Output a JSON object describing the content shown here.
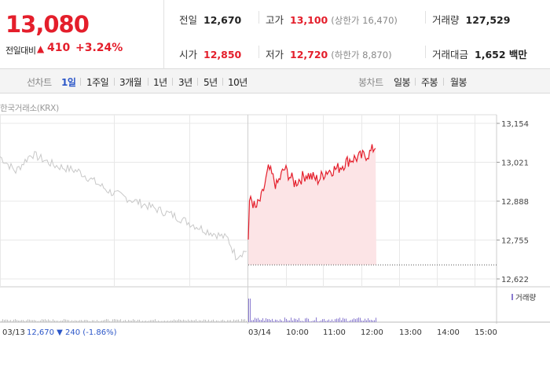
{
  "header": {
    "current_price": "13,080",
    "change_label": "전일대비",
    "change_icon": "▲",
    "change_value": "410",
    "change_rate": "+3.24%",
    "stats": {
      "prev_close_label": "전일",
      "prev_close": "12,670",
      "high_label": "고가",
      "high": "13,100",
      "upper_limit": "(상한가 16,470)",
      "volume_label": "거래량",
      "volume": "127,529",
      "open_label": "시가",
      "open": "12,850",
      "low_label": "저가",
      "low": "12,720",
      "lower_limit": "(하한가 8,870)",
      "value_label": "거래대금",
      "value": "1,652 백만"
    }
  },
  "tabs": {
    "line_label": "선차트",
    "periods": [
      "1일",
      "1주일",
      "3개월",
      "1년",
      "3년",
      "5년",
      "10년"
    ],
    "selected": "1일",
    "candle_label": "봉차트",
    "candle_periods": [
      "일봉",
      "주봉",
      "월봉"
    ]
  },
  "chart_data": {
    "type": "line",
    "source": "한국거래소(KRX)",
    "y_ticks": [
      "13,154",
      "13,021",
      "12,888",
      "12,755",
      "12,622"
    ],
    "y_values": [
      13154,
      13021,
      12888,
      12755,
      12622
    ],
    "x_ticks": [
      "03/13",
      "03/14",
      "10:00",
      "11:00",
      "12:00",
      "13:00",
      "14:00",
      "15:00"
    ],
    "prev_day": {
      "date": "03/13",
      "close": "12,670",
      "change_icon": "▼",
      "change": "240",
      "rate": "(-1.86%)",
      "start": 13040,
      "end": 12700
    },
    "today": {
      "start": 12755,
      "high": 13100,
      "last": 13080,
      "baseline": 12670
    },
    "volume_legend": "거래량",
    "colors": {
      "today": "#e41e2b",
      "fill": "#fce4e6",
      "prev": "#c8c8c8",
      "volume": "#8a7bd0",
      "grid": "#e8e8e8"
    }
  }
}
